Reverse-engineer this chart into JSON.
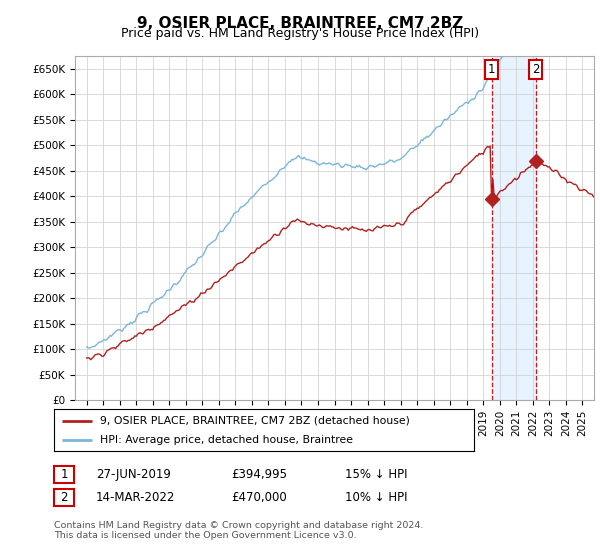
{
  "title": "9, OSIER PLACE, BRAINTREE, CM7 2BZ",
  "subtitle": "Price paid vs. HM Land Registry's House Price Index (HPI)",
  "ylim": [
    0,
    675000
  ],
  "yticks": [
    0,
    50000,
    100000,
    150000,
    200000,
    250000,
    300000,
    350000,
    400000,
    450000,
    500000,
    550000,
    600000,
    650000
  ],
  "ytick_labels": [
    "£0",
    "£50K",
    "£100K",
    "£150K",
    "£200K",
    "£250K",
    "£300K",
    "£350K",
    "£400K",
    "£450K",
    "£500K",
    "£550K",
    "£600K",
    "£650K"
  ],
  "hpi_color": "#7ab8d9",
  "price_color": "#b22020",
  "shade_color": "#ddeeff",
  "marker1_price": 394995,
  "marker2_price": 470000,
  "marker1_year": 2019.5,
  "marker2_year": 2022.2,
  "legend_label1": "9, OSIER PLACE, BRAINTREE, CM7 2BZ (detached house)",
  "legend_label2": "HPI: Average price, detached house, Braintree",
  "table_row1": [
    "1",
    "27-JUN-2019",
    "£394,995",
    "15% ↓ HPI"
  ],
  "table_row2": [
    "2",
    "14-MAR-2022",
    "£470,000",
    "10% ↓ HPI"
  ],
  "footnote": "Contains HM Land Registry data © Crown copyright and database right 2024.\nThis data is licensed under the Open Government Licence v3.0.",
  "bg_color": "#ffffff",
  "grid_color": "#cccccc",
  "title_fontsize": 11,
  "subtitle_fontsize": 9,
  "tick_fontsize": 7.5
}
